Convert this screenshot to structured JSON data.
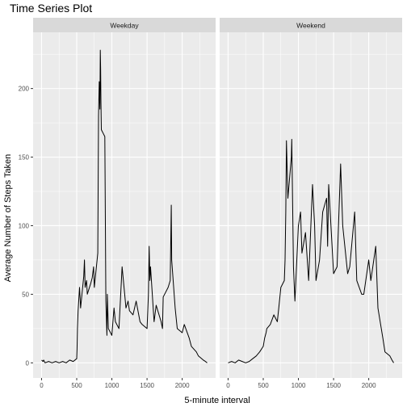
{
  "chart_data": {
    "type": "line",
    "title": "Time Series Plot",
    "xlabel": "5-minute interval",
    "ylabel": "Average Number of Steps Taken",
    "xlim": [
      -120,
      2475
    ],
    "ylim": [
      -11,
      241
    ],
    "x_ticks": [
      0,
      500,
      1000,
      1500,
      2000
    ],
    "y_ticks": [
      0,
      50,
      100,
      150,
      200
    ],
    "grid": true,
    "colors": {
      "line": "#000000",
      "panel_bg": "#ebebeb",
      "strip_bg": "#d9d9d9",
      "grid": "#ffffff"
    },
    "panels": [
      {
        "label": "Weekday",
        "x": [
          0,
          20,
          30,
          50,
          100,
          150,
          200,
          250,
          300,
          350,
          400,
          450,
          500,
          505,
          510,
          520,
          540,
          550,
          555,
          600,
          610,
          620,
          640,
          650,
          700,
          720,
          740,
          750,
          800,
          810,
          820,
          830,
          835,
          840,
          845,
          850,
          900,
          905,
          915,
          930,
          935,
          950,
          1000,
          1030,
          1050,
          1100,
          1145,
          1200,
          1230,
          1250,
          1300,
          1345,
          1400,
          1430,
          1500,
          1520,
          1530,
          1540,
          1550,
          1600,
          1630,
          1700,
          1720,
          1730,
          1800,
          1830,
          1845,
          1850,
          1900,
          1930,
          2000,
          2030,
          2100,
          2130,
          2200,
          2230,
          2300,
          2330,
          2355
        ],
        "y": [
          2,
          1,
          2,
          0,
          1,
          0,
          1,
          0,
          1,
          0,
          2,
          1,
          3,
          10,
          25,
          38,
          55,
          45,
          40,
          63,
          75,
          55,
          60,
          50,
          58,
          62,
          70,
          55,
          80,
          180,
          205,
          185,
          228,
          215,
          190,
          170,
          165,
          120,
          45,
          20,
          50,
          25,
          20,
          40,
          30,
          25,
          70,
          40,
          45,
          38,
          35,
          45,
          30,
          28,
          25,
          50,
          85,
          60,
          70,
          30,
          42,
          30,
          25,
          48,
          55,
          60,
          115,
          75,
          40,
          25,
          22,
          28,
          18,
          12,
          8,
          5,
          2,
          1,
          0
        ]
      },
      {
        "label": "Weekend",
        "x": [
          0,
          50,
          100,
          150,
          200,
          250,
          300,
          350,
          400,
          450,
          500,
          520,
          540,
          550,
          600,
          650,
          700,
          720,
          750,
          800,
          810,
          820,
          830,
          850,
          900,
          905,
          930,
          950,
          1000,
          1030,
          1050,
          1100,
          1145,
          1200,
          1230,
          1250,
          1300,
          1345,
          1400,
          1415,
          1430,
          1500,
          1550,
          1600,
          1630,
          1700,
          1730,
          1800,
          1830,
          1900,
          1930,
          2000,
          2030,
          2100,
          2130,
          2200,
          2230,
          2300,
          2330,
          2355
        ],
        "y": [
          0,
          1,
          0,
          2,
          1,
          0,
          1,
          3,
          5,
          8,
          12,
          18,
          22,
          25,
          28,
          35,
          30,
          40,
          55,
          60,
          75,
          110,
          162,
          120,
          150,
          163,
          70,
          45,
          100,
          110,
          80,
          95,
          60,
          130,
          100,
          60,
          75,
          110,
          120,
          85,
          130,
          65,
          70,
          145,
          100,
          65,
          70,
          110,
          60,
          50,
          50,
          75,
          60,
          85,
          40,
          18,
          8,
          5,
          2,
          0
        ]
      }
    ]
  }
}
